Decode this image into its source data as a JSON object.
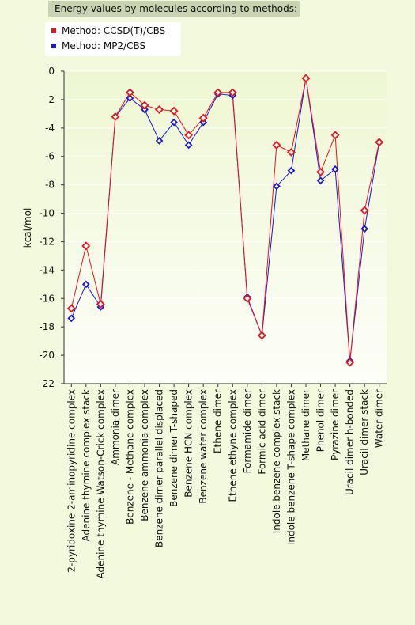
{
  "chart_data": {
    "type": "line",
    "title": "Energy values by molecules according to methods:",
    "xlabel": "",
    "ylabel": "kcal/mol",
    "ylim": [
      -22,
      0
    ],
    "yticks": [
      0,
      -2,
      -4,
      -6,
      -8,
      -10,
      -12,
      -14,
      -16,
      -18,
      -20,
      -22
    ],
    "grid": true,
    "legend_position": "top-left",
    "categories": [
      "2-pyridoxine 2-aminopyridine complex",
      "Adenine thymine complex stack",
      "Adenine thymine Watson-Crick complex",
      "Ammonia dimer",
      "Benzene - Methane complex",
      "Benzene ammonia complex",
      "Benzene dimer parallel displaced",
      "Benzene dimer T-shaped",
      "Benzene HCN complex",
      "Benzene water complex",
      "Ethene dimer",
      "Ethene ethyne complex",
      "Formamide dimer",
      "Formic acid dimer",
      "Indole benzene complex stack",
      "Indole benzene T-shape complex",
      "Methane dimer",
      "Phenol dimer",
      "Pyrazine dimer",
      "Uracil dimer h-bonded",
      "Uracil dimer stack",
      "Water dimer"
    ],
    "series": [
      {
        "name": "Method:  CCSD(T)/CBS",
        "color": "#e8141b",
        "values": [
          -16.7,
          -12.3,
          -16.4,
          -3.2,
          -1.5,
          -2.4,
          -2.7,
          -2.8,
          -4.5,
          -3.3,
          -1.5,
          -1.5,
          -16.0,
          -18.6,
          -5.2,
          -5.7,
          -0.5,
          -7.1,
          -4.5,
          -20.5,
          -9.8,
          -5.0
        ]
      },
      {
        "name": "Method:  MP2/CBS",
        "color": "#1a16d8",
        "values": [
          -17.4,
          -15.0,
          -16.6,
          -3.2,
          -1.9,
          -2.7,
          -4.9,
          -3.6,
          -5.2,
          -3.6,
          -1.6,
          -1.7,
          -15.9,
          -18.6,
          -8.1,
          -7.0,
          -0.5,
          -7.7,
          -6.9,
          -20.4,
          -11.1,
          -5.0
        ]
      }
    ]
  }
}
